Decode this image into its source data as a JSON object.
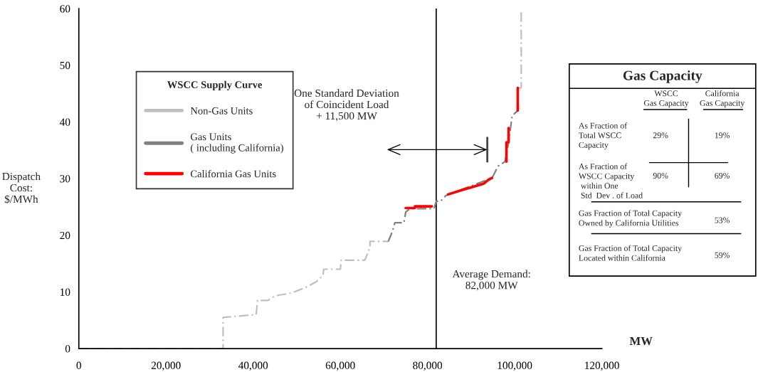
{
  "chart_data": [
    {
      "type": "line",
      "xlabel": "MW",
      "ylabel": "Dispatch\nCost:\n$/MWh",
      "legend_title": "WSCC Supply Curve",
      "legend": "top left",
      "grid": false,
      "xlim": [
        0,
        120000
      ],
      "ylim": [
        0,
        60
      ],
      "xticks": [
        0,
        {
          "value": 20000,
          "label": "20,000"
        },
        {
          "value": 40000,
          "label": "40,000"
        },
        {
          "value": 60000,
          "label": "60,000"
        },
        {
          "value": 80000,
          "label": "80,000"
        },
        {
          "value": 100000,
          "label": "100,000"
        },
        {
          "value": 120000,
          "label": "120,000"
        }
      ],
      "yticks": [
        0,
        10,
        20,
        30,
        40,
        50,
        60
      ],
      "series": [
        {
          "name": "Non-Gas Units",
          "color": "#bfbfbf",
          "line_style": "dashed",
          "x": [
            0,
            33100,
            33100,
            40700,
            41000,
            43400,
            45000,
            48800,
            52100,
            54500,
            56000,
            56200,
            60000,
            60200,
            65600,
            66000,
            66800,
            66800,
            71000
          ],
          "values": [
            0,
            0,
            5.5,
            6.0,
            8.5,
            8.5,
            9.3,
            9.8,
            10.8,
            11.8,
            12.9,
            14.0,
            14.0,
            15.6,
            15.6,
            16.3,
            17.9,
            18.9,
            18.9
          ]
        },
        {
          "color": "#bfbfbf",
          "line_style": "dashed",
          "x": [
            100700,
            101500,
            101500
          ],
          "values": [
            46.0,
            46.0,
            59.6
          ]
        },
        {
          "name": "Gas Units\n( including California)",
          "color": "#808080",
          "line_style": "dashed",
          "x": [
            71000,
            72000,
            72500,
            74600,
            75000,
            76000,
            81500,
            82000,
            83000,
            84200,
            94800,
            96200,
            97800,
            98600,
            99400,
            100000,
            100700,
            100700
          ],
          "values": [
            18.9,
            20.8,
            22.2,
            22.2,
            24.1,
            24.7,
            24.7,
            26.0,
            26.0,
            27.0,
            30.1,
            32.2,
            33.0,
            36.4,
            41.0,
            41.5,
            42.0,
            46.0
          ]
        },
        {
          "name": "California Gas Units",
          "color": "#ff0000",
          "line_style": "solid",
          "x": [
            75000,
            77100
          ],
          "values": [
            24.8,
            24.8
          ]
        },
        {
          "color": "#ff0000",
          "line_style": "solid",
          "x": [
            77100,
            81000
          ],
          "values": [
            25.1,
            25.1
          ]
        },
        {
          "color": "#ff0000",
          "line_style": "solid",
          "x": [
            84700,
            88000,
            92900,
            94000,
            94800
          ],
          "values": [
            27.2,
            28.0,
            29.1,
            29.8,
            30.1
          ]
        },
        {
          "color": "#ff0000",
          "line_style": "solid",
          "x": [
            98100,
            98100
          ],
          "values": [
            33.0,
            36.4
          ]
        },
        {
          "color": "#ff0000",
          "line_style": "solid",
          "x": [
            98600,
            98600
          ],
          "values": [
            36.4,
            38.9
          ]
        },
        {
          "color": "#ff0000",
          "line_style": "solid",
          "x": [
            100700,
            100700
          ],
          "values": [
            42.0,
            46.0
          ]
        }
      ],
      "annotations": [
        "One Standard Deviation\nof Coincident Load\n+ 11,500 MW"
      ],
      "ref_lines": [
        {
          "axis": "x",
          "value": 82000,
          "label": "Average Demand:\n82,000 MW",
          "color": "#000000"
        }
      ]
    },
    {
      "type": "other",
      "title": "Gas Capacity",
      "annotations": [
        "WSCC\nGas Capacity",
        "California\nGas Capacity",
        "As Fraction of\nTotal WSCC\nCapacity",
        "29%",
        "19%",
        "As Fraction of\nWSCC Capacity\n within One\n Std  Dev . of Load",
        "90%",
        "69%",
        "Gas Fraction of Total Capacity\nOwned by California Utilities",
        "53%",
        "Gas Fraction of Total Capacity\nLocated within California",
        "59%"
      ]
    }
  ]
}
